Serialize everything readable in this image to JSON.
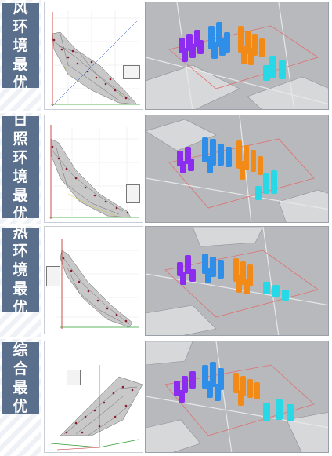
{
  "rows": [
    {
      "label": [
        "风",
        "环",
        "境",
        "最",
        "优"
      ],
      "scheme": "风环境最优"
    },
    {
      "label": [
        "日",
        "照",
        "环",
        "境",
        "最",
        "优"
      ],
      "scheme": "日照环境最优"
    },
    {
      "label": [
        "热",
        "环",
        "境",
        "最",
        "优"
      ],
      "scheme": "热环境最优"
    },
    {
      "label": [
        "综",
        "合",
        "最",
        "优"
      ],
      "scheme": "综合最优"
    }
  ],
  "colors": {
    "label_bg": "#5a6f8c",
    "purple": "#8b2cf0",
    "blue": "#2f8ee8",
    "orange": "#f28a18",
    "cyan": "#27d8e6",
    "map_bg": "#b7b9bd",
    "pareto_mesh": "#8f8f8f",
    "points": "#8b1c2e"
  }
}
